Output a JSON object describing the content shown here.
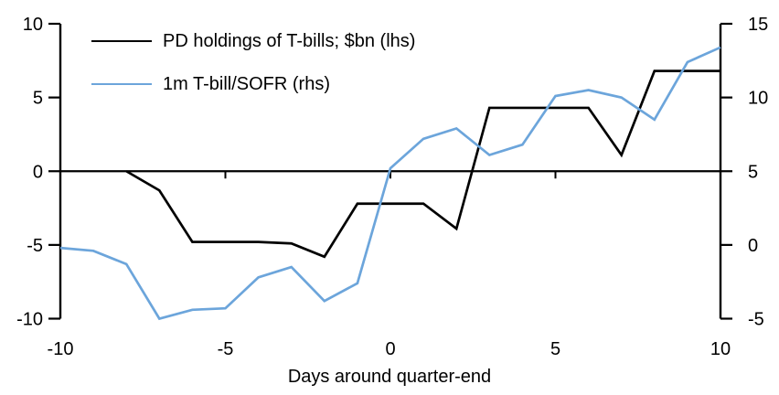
{
  "chart_data": {
    "type": "line",
    "xlabel": "Days around quarter-end",
    "x_range": [
      -10,
      10
    ],
    "x_ticks": [
      -10,
      -5,
      0,
      5,
      10
    ],
    "grid": false,
    "legend_position": "top-left-inside",
    "left_axis": {
      "range": [
        -10,
        10
      ],
      "ticks": [
        10,
        5,
        0,
        -5,
        -10
      ]
    },
    "right_axis": {
      "range": [
        -5,
        15
      ],
      "ticks": [
        15,
        10,
        5,
        0,
        -5
      ]
    },
    "axis_color": "#000000",
    "series": [
      {
        "name": "PD holdings of T-bills; $bn (lhs)",
        "axis": "left",
        "color": "#000000",
        "x": [
          -8,
          -7,
          -6,
          -5,
          -4,
          -3,
          -2,
          -1,
          0,
          1,
          2,
          3,
          4,
          5,
          6,
          7,
          8,
          9,
          10
        ],
        "values": [
          0.0,
          -1.3,
          -4.8,
          -4.8,
          -4.8,
          -4.9,
          -5.8,
          -2.2,
          -2.2,
          -2.2,
          -3.9,
          4.3,
          4.3,
          4.3,
          4.3,
          1.1,
          6.8,
          6.8,
          6.8
        ]
      },
      {
        "name": "1m T-bill/SOFR (rhs)",
        "axis": "right",
        "color": "#6CA5DB",
        "x": [
          -10,
          -9,
          -8,
          -7,
          -6,
          -5,
          -4,
          -3,
          -2,
          -1,
          0,
          1,
          2,
          3,
          4,
          5,
          6,
          7,
          8,
          9,
          10
        ],
        "values": [
          -0.2,
          -0.4,
          -1.3,
          -5.0,
          -4.4,
          -4.3,
          -2.2,
          -1.5,
          -3.8,
          -2.6,
          5.2,
          7.2,
          7.9,
          6.1,
          6.8,
          10.1,
          10.5,
          10.0,
          8.5,
          12.4,
          13.4
        ]
      }
    ]
  }
}
